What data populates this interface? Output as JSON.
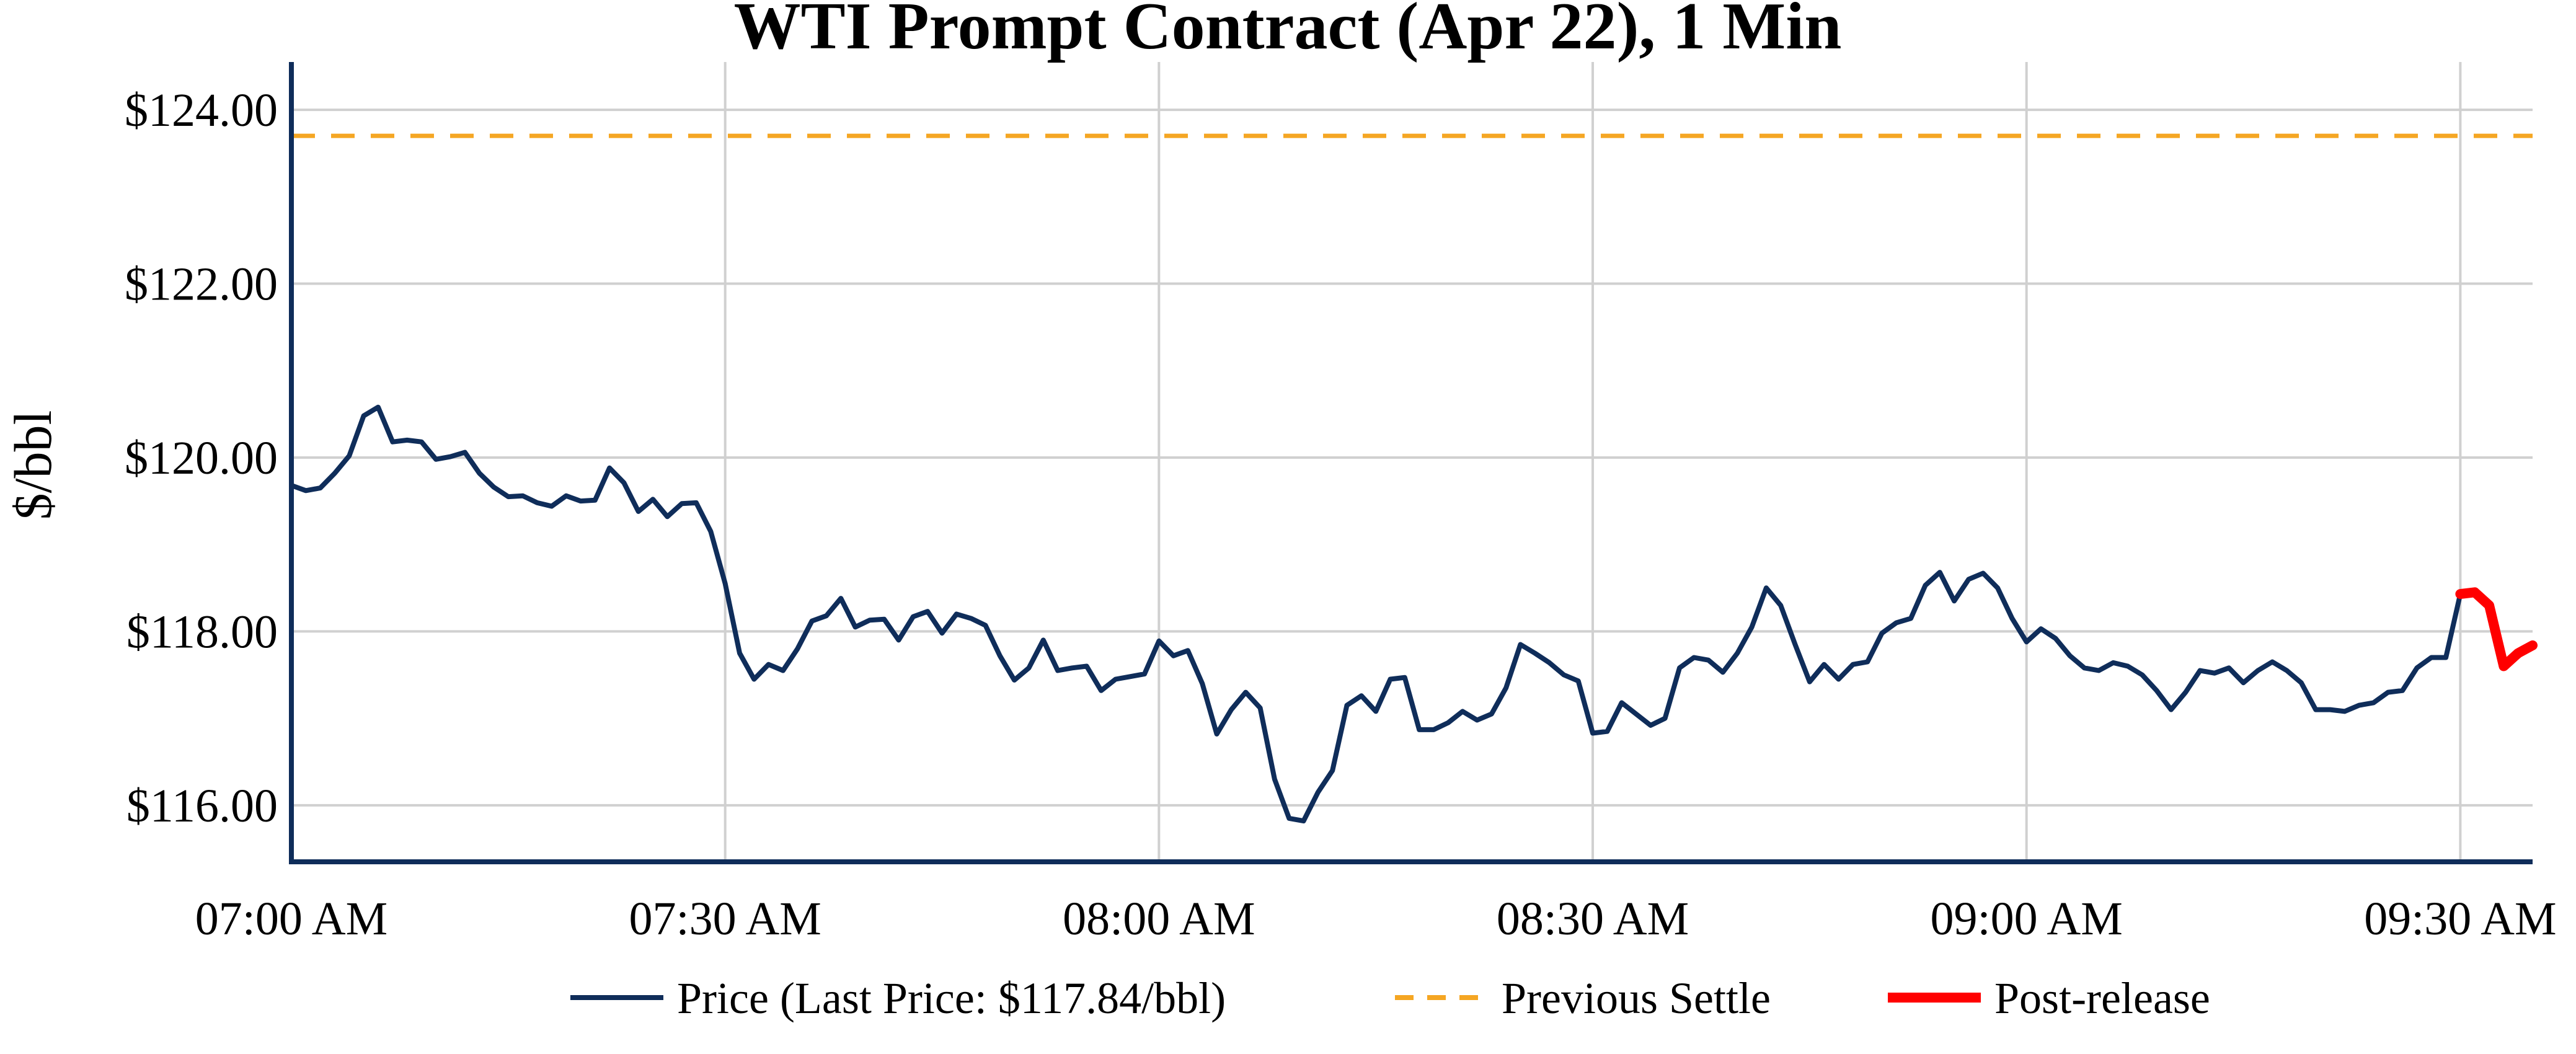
{
  "chart_data": {
    "type": "line",
    "title": "WTI Prompt Contract (Apr 22), 1 Min",
    "xlabel": "",
    "ylabel": "$/bbl",
    "ylim": [
      115.35,
      124.55
    ],
    "xlim_minutes": [
      0,
      155
    ],
    "yticks": [
      116,
      118,
      120,
      122,
      124
    ],
    "ytick_labels": [
      "$116.00",
      "$118.00",
      "$120.00",
      "$122.00",
      "$124.00"
    ],
    "xticks_minutes": [
      0,
      30,
      60,
      90,
      120,
      150
    ],
    "xtick_labels": [
      "07:00 AM",
      "07:30 AM",
      "08:00 AM",
      "08:30 AM",
      "09:00 AM",
      "09:30 AM"
    ],
    "grid": true,
    "legend_position": "bottom",
    "colors": {
      "price": "#0f2d5a",
      "settle": "#f5a623",
      "post_release": "#ff0000",
      "grid": "#d0d0d0",
      "axis": "#0f2d5a"
    },
    "series": [
      {
        "name": "Price (Last Price: $117.84/bbl)",
        "style": "solid",
        "x_minutes": [
          0,
          1,
          2,
          3,
          4,
          5,
          6,
          7,
          8,
          9,
          10,
          11,
          12,
          13,
          14,
          15,
          16,
          17,
          18,
          19,
          20,
          21,
          22,
          23,
          24,
          25,
          26,
          27,
          28,
          29,
          30,
          31,
          32,
          33,
          34,
          35,
          36,
          37,
          38,
          39,
          40,
          41,
          42,
          43,
          44,
          45,
          46,
          47,
          48,
          49,
          50,
          51,
          52,
          53,
          54,
          55,
          56,
          57,
          58,
          59,
          60,
          61,
          62,
          63,
          64,
          65,
          66,
          67,
          68,
          69,
          70,
          71,
          72,
          73,
          74,
          75,
          76,
          77,
          78,
          79,
          80,
          81,
          82,
          83,
          84,
          85,
          86,
          87,
          88,
          89,
          90,
          91,
          92,
          93,
          94,
          95,
          96,
          97,
          98,
          99,
          100,
          101,
          102,
          103,
          104,
          105,
          106,
          107,
          108,
          109,
          110,
          111,
          112,
          113,
          114,
          115,
          116,
          117,
          118,
          119,
          120,
          121,
          122,
          123,
          124,
          125,
          126,
          127,
          128,
          129,
          130,
          131,
          132,
          133,
          134,
          135,
          136,
          137,
          138,
          139,
          140,
          141,
          142,
          143,
          144,
          145,
          146,
          147,
          148,
          149,
          150
        ],
        "values": [
          119.68,
          119.62,
          119.65,
          119.82,
          120.02,
          120.48,
          120.58,
          120.18,
          120.2,
          120.18,
          119.98,
          120.01,
          120.06,
          119.82,
          119.66,
          119.55,
          119.56,
          119.48,
          119.44,
          119.56,
          119.5,
          119.51,
          119.88,
          119.71,
          119.38,
          119.52,
          119.32,
          119.47,
          119.48,
          119.15,
          118.55,
          117.75,
          117.45,
          117.62,
          117.55,
          117.8,
          118.12,
          118.18,
          118.38,
          118.05,
          118.13,
          118.14,
          117.9,
          118.17,
          118.23,
          117.98,
          118.2,
          118.15,
          118.07,
          117.72,
          117.44,
          117.58,
          117.9,
          117.55,
          117.58,
          117.6,
          117.32,
          117.45,
          117.48,
          117.51,
          117.89,
          117.72,
          117.78,
          117.4,
          116.82,
          117.1,
          117.3,
          117.12,
          116.3,
          115.85,
          115.82,
          116.15,
          116.4,
          117.15,
          117.26,
          117.08,
          117.45,
          117.47,
          116.87,
          116.87,
          116.95,
          117.08,
          116.98,
          117.05,
          117.35,
          117.85,
          117.75,
          117.64,
          117.5,
          117.43,
          116.83,
          116.85,
          117.18,
          117.05,
          116.92,
          117.0,
          117.58,
          117.7,
          117.67,
          117.53,
          117.75,
          118.05,
          118.5,
          118.3,
          117.85,
          117.42,
          117.62,
          117.45,
          117.62,
          117.65,
          117.98,
          118.1,
          118.15,
          118.53,
          118.68,
          118.35,
          118.6,
          118.67,
          118.5,
          118.15,
          117.88,
          118.03,
          117.92,
          117.72,
          117.58,
          117.55,
          117.64,
          117.6,
          117.5,
          117.32,
          117.1,
          117.3,
          117.55,
          117.52,
          117.58,
          117.41,
          117.55,
          117.65,
          117.55,
          117.41,
          117.1,
          117.1,
          117.08,
          117.15,
          117.18,
          117.3,
          117.32,
          117.58,
          117.7,
          117.7,
          118.43
        ]
      },
      {
        "name": "Previous Settle",
        "style": "dashed",
        "constant_value": 123.7
      },
      {
        "name": "Post-release",
        "style": "solid-thick",
        "x_minutes": [
          150,
          151,
          152,
          153,
          154,
          155
        ],
        "values": [
          118.43,
          118.45,
          118.3,
          117.6,
          117.75,
          117.84
        ]
      }
    ]
  }
}
